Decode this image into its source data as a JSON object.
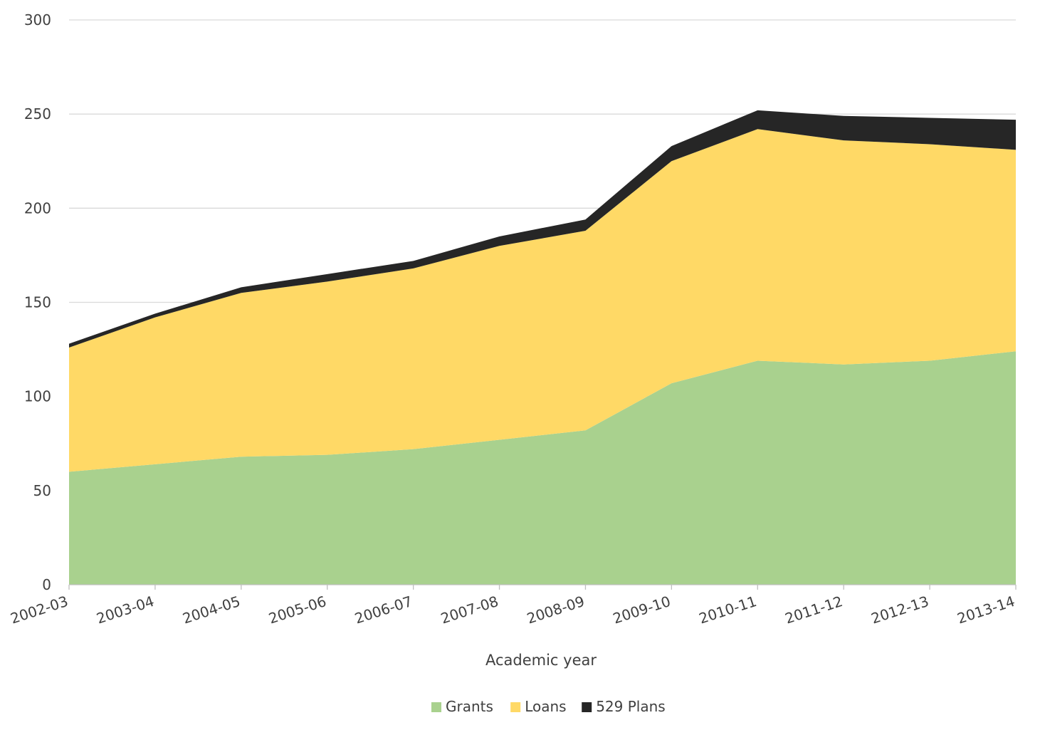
{
  "chart_data": {
    "type": "area",
    "stacked": true,
    "title": "",
    "xlabel": "Academic year",
    "ylabel": "",
    "ylim": [
      0,
      300
    ],
    "yticks": [
      0,
      50,
      100,
      150,
      200,
      250,
      300
    ],
    "grid": true,
    "legend_position": "bottom",
    "categories": [
      "2002-03",
      "2003-04",
      "2004-05",
      "2005-06",
      "2006-07",
      "2007-08",
      "2008-09",
      "2009-10",
      "2010-11",
      "2011-12",
      "2012-13",
      "2013-14"
    ],
    "series": [
      {
        "name": "Grants",
        "color": "#a9d18e",
        "values": [
          60,
          64,
          68,
          69,
          72,
          77,
          82,
          107,
          119,
          117,
          119,
          124
        ]
      },
      {
        "name": "Loans",
        "color": "#ffd966",
        "values": [
          66,
          78,
          87,
          92,
          96,
          103,
          106,
          118,
          123,
          119,
          115,
          107
        ]
      },
      {
        "name": "529 Plans",
        "color": "#262626",
        "values": [
          2,
          2,
          3,
          4,
          4,
          5,
          6,
          8,
          10,
          13,
          14,
          16
        ]
      }
    ]
  }
}
